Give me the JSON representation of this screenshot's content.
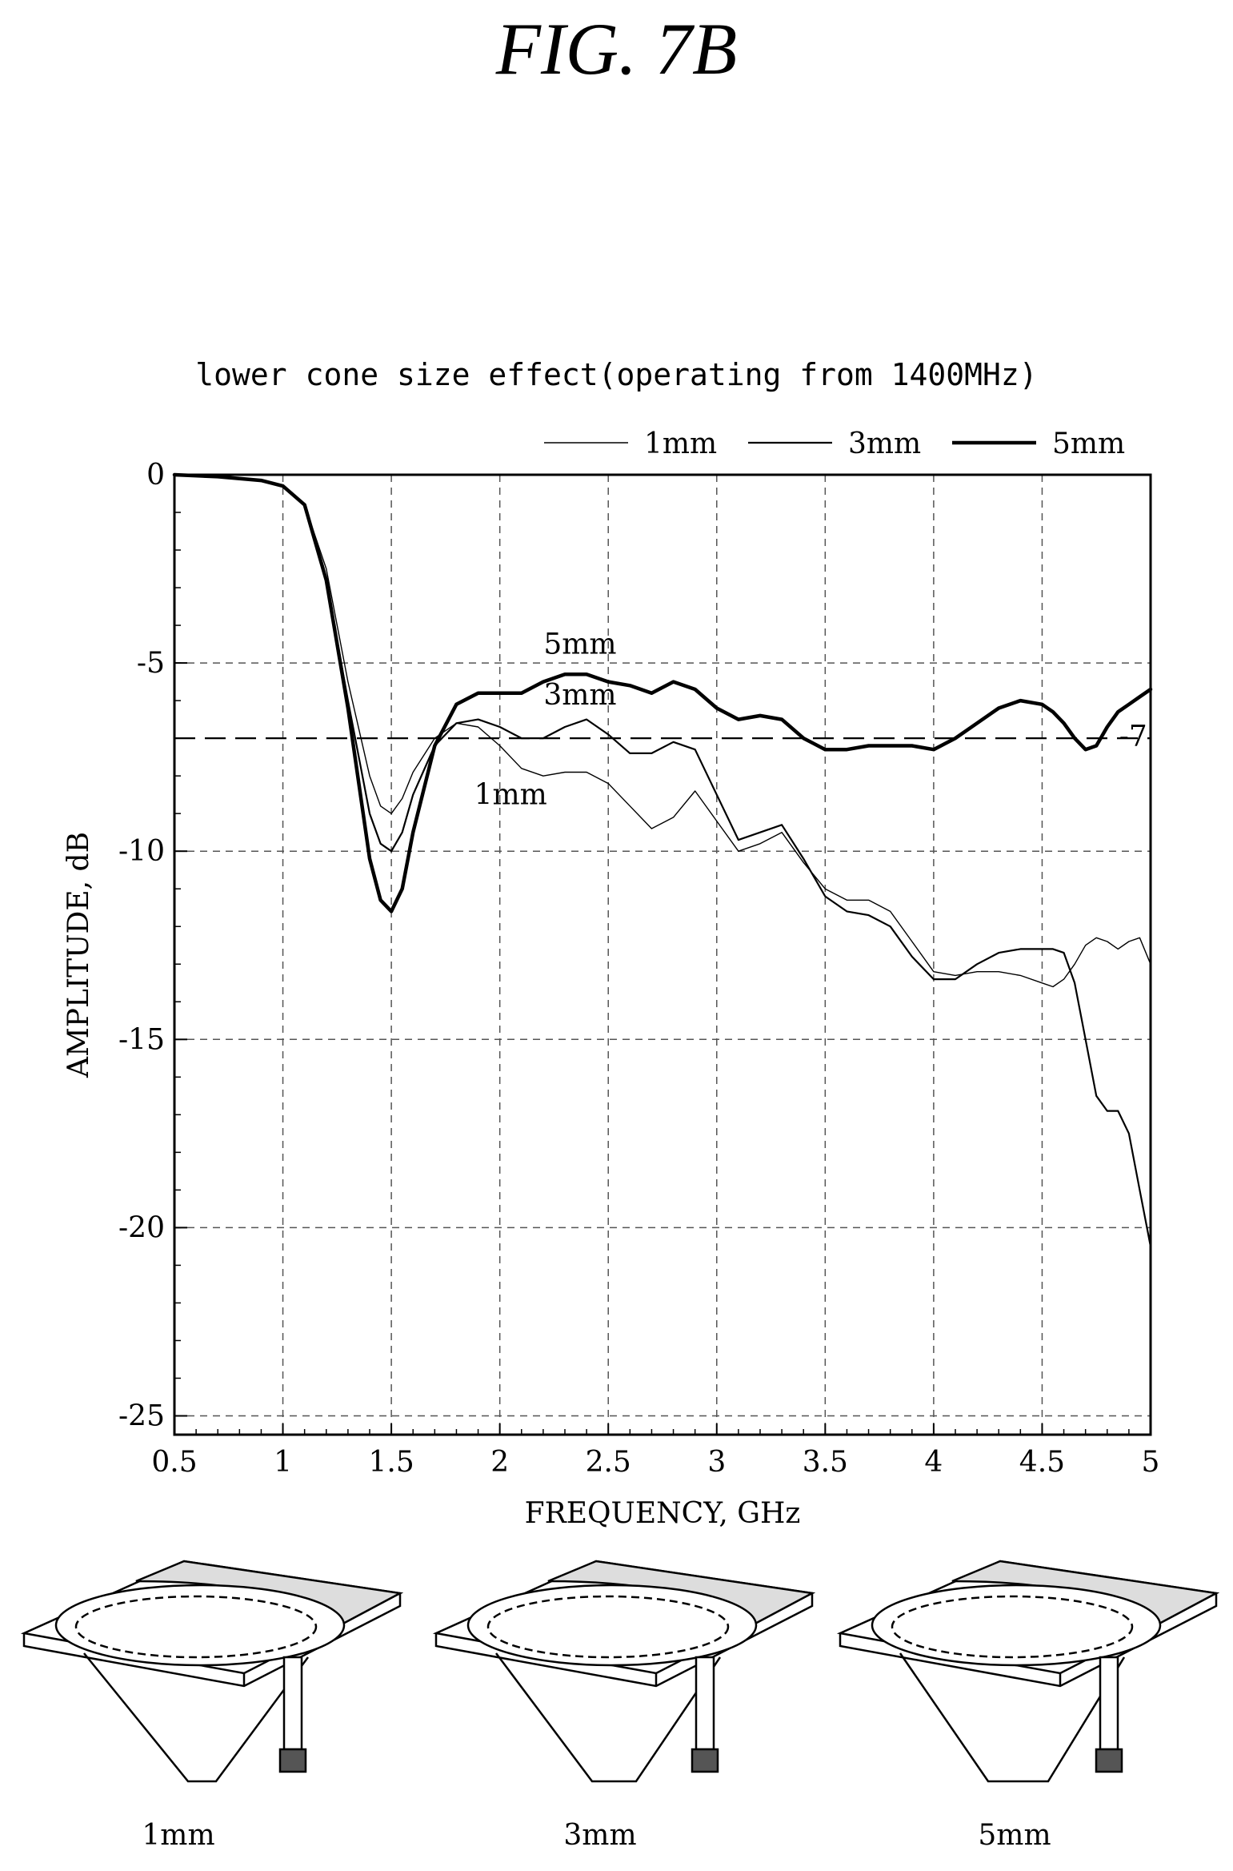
{
  "figure_label": "FIG. 7B",
  "chart_data": {
    "type": "line",
    "title": "lower cone size effect(operating from 1400MHz)",
    "xlabel": "FREQUENCY, GHz",
    "ylabel": "AMPLITUDE, dB",
    "xlim": [
      0.5,
      5
    ],
    "ylim": [
      -25.5,
      0
    ],
    "xticks": [
      "0.5",
      "1",
      "1.5",
      "2",
      "2.5",
      "3",
      "3.5",
      "4",
      "4.5",
      "5"
    ],
    "yticks": [
      "0",
      "-5",
      "-10",
      "-15",
      "-20",
      "-25"
    ],
    "grid": true,
    "legend_position": "top-right",
    "reference_line": {
      "y": -7,
      "label": "-7"
    },
    "series": [
      {
        "name": "1mm",
        "style": "thin",
        "x": [
          0.5,
          0.7,
          0.9,
          1.0,
          1.1,
          1.2,
          1.3,
          1.4,
          1.45,
          1.5,
          1.55,
          1.6,
          1.7,
          1.8,
          1.9,
          2.0,
          2.1,
          2.2,
          2.3,
          2.4,
          2.5,
          2.6,
          2.7,
          2.8,
          2.9,
          3.0,
          3.1,
          3.2,
          3.3,
          3.4,
          3.5,
          3.6,
          3.7,
          3.8,
          3.9,
          4.0,
          4.1,
          4.2,
          4.3,
          4.4,
          4.5,
          4.55,
          4.6,
          4.65,
          4.7,
          4.75,
          4.8,
          4.85,
          4.9,
          4.95,
          5.0
        ],
        "y": [
          0.0,
          -0.05,
          -0.15,
          -0.3,
          -0.8,
          -2.5,
          -5.5,
          -8.0,
          -8.8,
          -9.0,
          -8.6,
          -7.9,
          -7.0,
          -6.6,
          -6.7,
          -7.2,
          -7.8,
          -8.0,
          -7.9,
          -7.9,
          -8.2,
          -8.8,
          -9.4,
          -9.1,
          -8.4,
          -9.2,
          -10.0,
          -9.8,
          -9.5,
          -10.3,
          -11.0,
          -11.3,
          -11.3,
          -11.6,
          -12.4,
          -13.2,
          -13.3,
          -13.2,
          -13.2,
          -13.3,
          -13.5,
          -13.6,
          -13.4,
          -13.0,
          -12.5,
          -12.3,
          -12.4,
          -12.6,
          -12.4,
          -12.3,
          -13.0
        ]
      },
      {
        "name": "3mm",
        "style": "medium",
        "x": [
          0.5,
          0.7,
          0.9,
          1.0,
          1.1,
          1.2,
          1.3,
          1.4,
          1.45,
          1.5,
          1.55,
          1.6,
          1.7,
          1.8,
          1.9,
          2.0,
          2.1,
          2.2,
          2.3,
          2.4,
          2.5,
          2.6,
          2.7,
          2.8,
          2.9,
          3.0,
          3.1,
          3.2,
          3.3,
          3.4,
          3.5,
          3.6,
          3.7,
          3.8,
          3.9,
          4.0,
          4.1,
          4.2,
          4.3,
          4.4,
          4.5,
          4.55,
          4.6,
          4.65,
          4.7,
          4.75,
          4.8,
          4.85,
          4.9,
          4.95,
          5.0
        ],
        "y": [
          0.0,
          -0.05,
          -0.15,
          -0.3,
          -0.8,
          -2.8,
          -6.0,
          -9.0,
          -9.8,
          -10.0,
          -9.5,
          -8.5,
          -7.2,
          -6.6,
          -6.5,
          -6.7,
          -7.0,
          -7.0,
          -6.7,
          -6.5,
          -6.9,
          -7.4,
          -7.4,
          -7.1,
          -7.3,
          -8.5,
          -9.7,
          -9.5,
          -9.3,
          -10.2,
          -11.2,
          -11.6,
          -11.7,
          -12.0,
          -12.8,
          -13.4,
          -13.4,
          -13.0,
          -12.7,
          -12.6,
          -12.6,
          -12.6,
          -12.7,
          -13.5,
          -15.0,
          -16.5,
          -16.9,
          -16.9,
          -17.5,
          -19.0,
          -20.5
        ]
      },
      {
        "name": "5mm",
        "style": "thick",
        "x": [
          0.5,
          0.7,
          0.9,
          1.0,
          1.1,
          1.2,
          1.3,
          1.4,
          1.45,
          1.5,
          1.55,
          1.6,
          1.7,
          1.8,
          1.9,
          2.0,
          2.1,
          2.2,
          2.3,
          2.4,
          2.5,
          2.6,
          2.7,
          2.8,
          2.9,
          3.0,
          3.1,
          3.2,
          3.3,
          3.4,
          3.5,
          3.6,
          3.7,
          3.8,
          3.9,
          4.0,
          4.1,
          4.2,
          4.3,
          4.4,
          4.5,
          4.55,
          4.6,
          4.65,
          4.7,
          4.75,
          4.8,
          4.85,
          4.9,
          4.95,
          5.0
        ],
        "y": [
          0.0,
          -0.05,
          -0.15,
          -0.3,
          -0.8,
          -2.8,
          -6.2,
          -10.2,
          -11.3,
          -11.6,
          -11.0,
          -9.5,
          -7.2,
          -6.1,
          -5.8,
          -5.8,
          -5.8,
          -5.5,
          -5.3,
          -5.3,
          -5.5,
          -5.6,
          -5.8,
          -5.5,
          -5.7,
          -6.2,
          -6.5,
          -6.4,
          -6.5,
          -7.0,
          -7.3,
          -7.3,
          -7.2,
          -7.2,
          -7.2,
          -7.3,
          -7.0,
          -6.6,
          -6.2,
          -6.0,
          -6.1,
          -6.3,
          -6.6,
          -7.0,
          -7.3,
          -7.2,
          -6.7,
          -6.3,
          -6.1,
          -5.9,
          -5.7
        ]
      }
    ],
    "annotations": [
      {
        "text": "5mm",
        "x": 2.37,
        "y": -4.75
      },
      {
        "text": "3mm",
        "x": 2.37,
        "y": -6.1
      },
      {
        "text": "1mm",
        "x": 2.05,
        "y": -8.75
      },
      {
        "text": "-7",
        "x": 4.92,
        "y": -7.2
      }
    ]
  },
  "antennas": [
    {
      "caption": "1mm",
      "cone": "1mm"
    },
    {
      "caption": "3mm",
      "cone": "3mm"
    },
    {
      "caption": "5mm",
      "cone": "5mm"
    }
  ]
}
